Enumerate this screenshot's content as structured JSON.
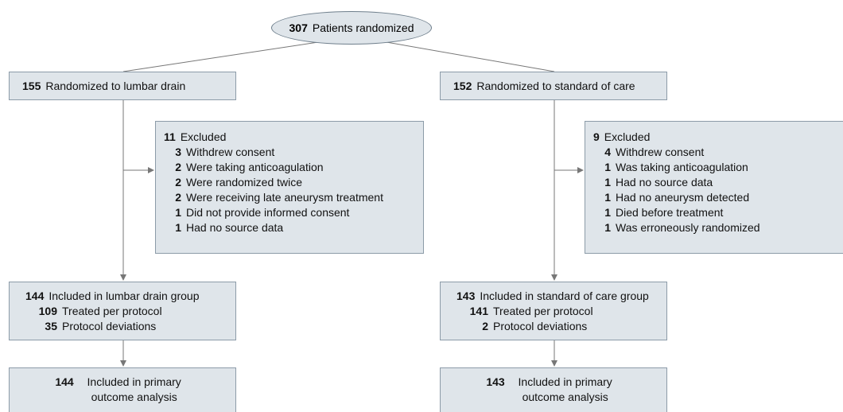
{
  "randomized": {
    "n": 307,
    "label": "Patients randomized"
  },
  "arms": [
    {
      "allocation": {
        "n": 155,
        "label": "Randomized to lumbar drain"
      },
      "excluded": {
        "n": 11,
        "label": "Excluded",
        "reasons": [
          {
            "n": 3,
            "label": "Withdrew consent"
          },
          {
            "n": 2,
            "label": "Were taking anticoagulation"
          },
          {
            "n": 2,
            "label": "Were randomized twice"
          },
          {
            "n": 2,
            "label": "Were receiving late aneurysm treatment"
          },
          {
            "n": 1,
            "label": "Did not provide informed consent"
          },
          {
            "n": 1,
            "label": "Had no source data"
          }
        ]
      },
      "included": {
        "n": 144,
        "label": "Included in lumbar drain group",
        "details": [
          {
            "n": 109,
            "label": "Treated per protocol"
          },
          {
            "n": 35,
            "label": "Protocol deviations"
          }
        ]
      },
      "analysis": {
        "n": 144,
        "label": "Included in primary outcome analysis"
      }
    },
    {
      "allocation": {
        "n": 152,
        "label": "Randomized to standard of care"
      },
      "excluded": {
        "n": 9,
        "label": "Excluded",
        "reasons": [
          {
            "n": 4,
            "label": "Withdrew consent"
          },
          {
            "n": 1,
            "label": "Was taking anticoagulation"
          },
          {
            "n": 1,
            "label": "Had no source data"
          },
          {
            "n": 1,
            "label": "Had no aneurysm detected"
          },
          {
            "n": 1,
            "label": "Died before treatment"
          },
          {
            "n": 1,
            "label": "Was erroneously randomized"
          }
        ]
      },
      "included": {
        "n": 143,
        "label": "Included in standard of care group",
        "details": [
          {
            "n": 141,
            "label": "Treated per protocol"
          },
          {
            "n": 2,
            "label": "Protocol deviations"
          }
        ]
      },
      "analysis": {
        "n": 143,
        "label": "Included in primary outcome analysis"
      }
    }
  ]
}
